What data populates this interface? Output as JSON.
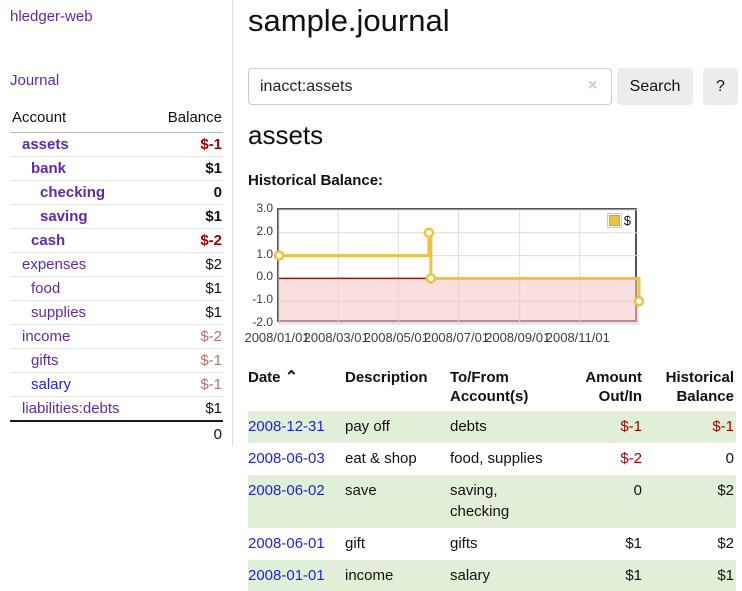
{
  "app": {
    "brand": "hledger-web"
  },
  "sidebar": {
    "nav_journal": "Journal",
    "header": {
      "account": "Account",
      "balance": "Balance"
    },
    "accounts": [
      {
        "name": "assets",
        "balance": "$-1"
      },
      {
        "name": "bank",
        "balance": "$1"
      },
      {
        "name": "checking",
        "balance": "0"
      },
      {
        "name": "saving",
        "balance": "$1"
      },
      {
        "name": "cash",
        "balance": "$-2"
      },
      {
        "name": "expenses",
        "balance": "$2"
      },
      {
        "name": "food",
        "balance": "$1"
      },
      {
        "name": "supplies",
        "balance": "$1"
      },
      {
        "name": "income",
        "balance": "$-2"
      },
      {
        "name": "gifts",
        "balance": "$-1"
      },
      {
        "name": "salary",
        "balance": "$-1"
      },
      {
        "name": "liabilities:debts",
        "balance": "$1"
      }
    ],
    "total": "0"
  },
  "header": {
    "title": "sample.journal"
  },
  "search": {
    "value": "inacct:assets",
    "clear_icon": "×",
    "button": "Search",
    "help_button": "?"
  },
  "main": {
    "heading": "assets",
    "chart_label": "Historical Balance:"
  },
  "chart_data": {
    "type": "line",
    "title": "Historical Balance:",
    "x_start": "2008-01-01",
    "x_span_days": 365,
    "ylim": [
      -2,
      3
    ],
    "y_ticks": [
      "3.0",
      "2.0",
      "1.0",
      "0.0",
      "-1.0",
      "-2.0"
    ],
    "x_ticks": [
      "2008/01/01",
      "2008/03/01",
      "2008/05/01",
      "2008/07/01",
      "2008/09/01",
      "2008/11/01"
    ],
    "grid": true,
    "colors": {
      "grid": "#dcdcdc",
      "negative_region": "#f6c4c4",
      "zero_line": "#8f1a1a"
    },
    "legend": {
      "position": "top-right"
    },
    "series": [
      {
        "name": "$",
        "color": "#edc240",
        "step": true,
        "points": [
          {
            "date": "2008-01-01",
            "value": 1
          },
          {
            "date": "2008-06-01",
            "value": 2
          },
          {
            "date": "2008-06-03",
            "value": 0
          },
          {
            "date": "2008-12-31",
            "value": -1
          }
        ]
      }
    ]
  },
  "table": {
    "columns": {
      "date": "Date",
      "sort_icon": "⌃",
      "description": "Description",
      "accounts": "To/From Account(s)",
      "amount": "Amount Out/In",
      "balance": "Historical Balance"
    },
    "rows": [
      {
        "date": "2008-12-31",
        "description": "pay off",
        "accounts": "debts",
        "amount": "$-1",
        "balance": "$-1"
      },
      {
        "date": "2008-06-03",
        "description": "eat & shop",
        "accounts": "food, supplies",
        "amount": "$-2",
        "balance": "0"
      },
      {
        "date": "2008-06-02",
        "description": "save",
        "accounts": "saving,\nchecking",
        "amount": "0",
        "balance": "$2"
      },
      {
        "date": "2008-06-01",
        "description": "gift",
        "accounts": "gifts",
        "amount": "$1",
        "balance": "$2"
      },
      {
        "date": "2008-01-01",
        "description": "income",
        "accounts": "salary",
        "amount": "$1",
        "balance": "$1"
      }
    ]
  }
}
